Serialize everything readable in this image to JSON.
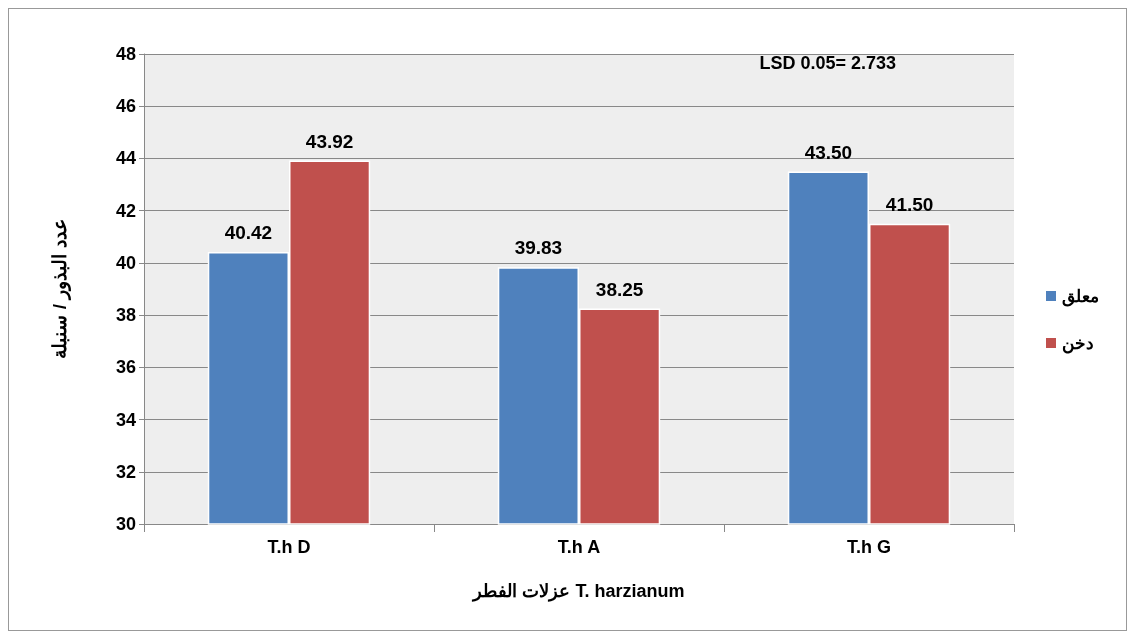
{
  "chart_data": {
    "type": "bar",
    "xlabel": "عزلات الفطر T. harzianum",
    "ylabel": "عدد البذور / سنبلة",
    "annotations": [
      "LSD 0.05= 2.733"
    ],
    "categories": [
      "T.h D",
      "T.h A",
      "T.h G"
    ],
    "series": [
      {
        "name": "معلق",
        "color": "#4f81bd",
        "values": [
          40.42,
          39.83,
          43.5
        ],
        "value_labels": [
          "40.42",
          "39.83",
          "43.50"
        ]
      },
      {
        "name": "دخن",
        "color": "#c0504d",
        "values": [
          43.92,
          38.25,
          41.5
        ],
        "value_labels": [
          "43.92",
          "38.25",
          "41.50"
        ]
      }
    ],
    "ylim": [
      30,
      48
    ],
    "yticks": [
      30,
      32,
      34,
      36,
      38,
      40,
      42,
      44,
      46,
      48
    ],
    "grid": "y",
    "legend": "right"
  }
}
